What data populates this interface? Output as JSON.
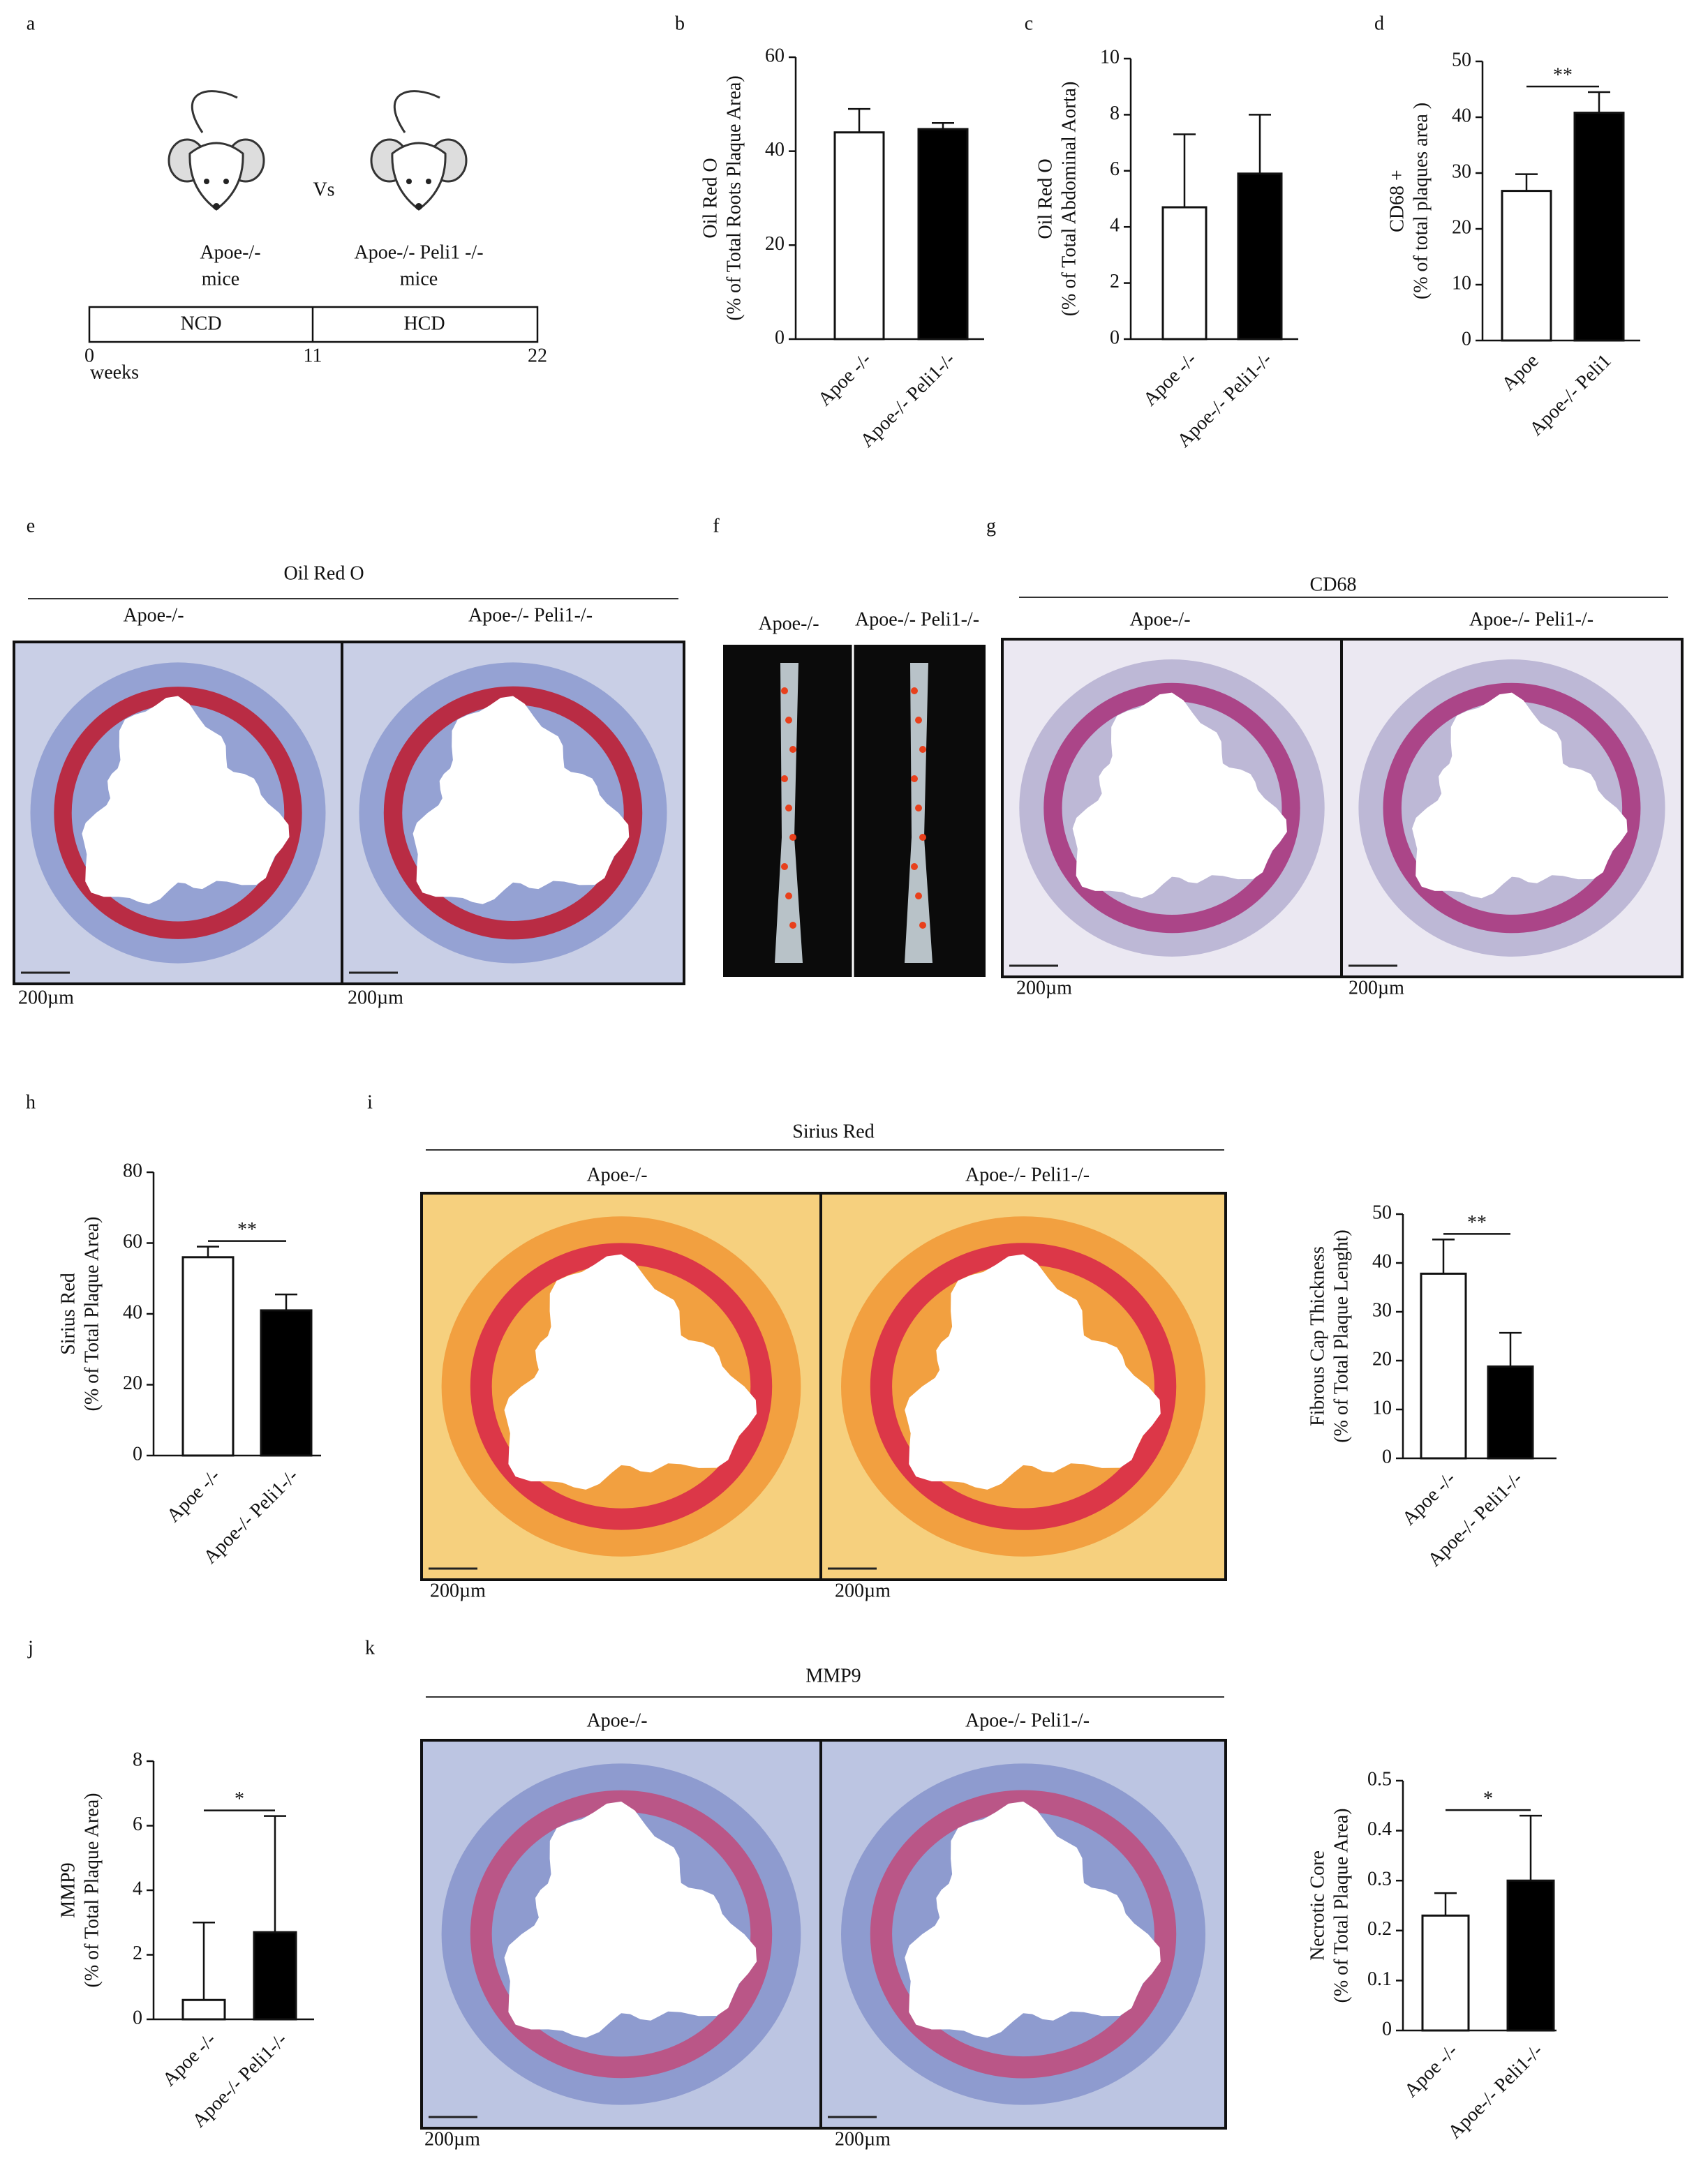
{
  "chart_data": [
    {
      "type": "bar",
      "ylabel": [
        "Oil Red O",
        "(% of Total Roots Plaque Area)"
      ],
      "categories": [
        "Apoe -/-",
        "Apoe-/- Peli1-/-"
      ],
      "values": [
        44,
        44.7
      ],
      "errors": [
        5,
        1.3
      ],
      "colors": [
        "#ffffff",
        "#000000"
      ],
      "ylim": [
        0,
        60
      ],
      "yticks": [
        0,
        20,
        40,
        60
      ]
    },
    {
      "type": "bar",
      "ylabel": [
        "Oil Red O",
        "(% of Total Abdominal Aorta)"
      ],
      "categories": [
        "Apoe -/-",
        "Apoe-/- Peli1-/-"
      ],
      "values": [
        4.7,
        5.9
      ],
      "errors": [
        2.6,
        2.1
      ],
      "colors": [
        "#ffffff",
        "#000000"
      ],
      "ylim": [
        0,
        10
      ],
      "yticks": [
        0,
        2,
        4,
        6,
        8,
        10
      ]
    },
    {
      "type": "bar",
      "ylabel": [
        "CD68 +",
        "(% of total plaques area )"
      ],
      "categories": [
        "Apoe",
        "Apoe-/- Peli1"
      ],
      "values": [
        26.8,
        40.8
      ],
      "errors": [
        3,
        3.7
      ],
      "colors": [
        "#ffffff",
        "#000000"
      ],
      "ylim": [
        0,
        50
      ],
      "yticks": [
        0,
        10,
        20,
        30,
        40,
        50
      ],
      "annotation": "**"
    },
    {
      "type": "bar",
      "ylabel": [
        "Sirius Red",
        "(% of Total Plaque Area)"
      ],
      "categories": [
        "Apoe -/-",
        "Apoe-/- Peli1-/-"
      ],
      "values": [
        56,
        41
      ],
      "errors": [
        3,
        4.5
      ],
      "colors": [
        "#ffffff",
        "#000000"
      ],
      "ylim": [
        0,
        80
      ],
      "yticks": [
        0,
        20,
        40,
        60,
        80
      ],
      "annotation": "**"
    },
    {
      "type": "bar",
      "ylabel": [
        "Fibrous Cap Thickness",
        "(% of Total Plaque Lenght)"
      ],
      "categories": [
        "Apoe -/-",
        "Apoe-/- Peli1-/-"
      ],
      "values": [
        37.8,
        18.8
      ],
      "errors": [
        7,
        6.9
      ],
      "colors": [
        "#ffffff",
        "#000000"
      ],
      "ylim": [
        0,
        50
      ],
      "yticks": [
        0,
        10,
        20,
        30,
        40,
        50
      ],
      "annotation": "**"
    },
    {
      "type": "bar",
      "ylabel": [
        "MMP9",
        "(% of Total Plaque Area)"
      ],
      "categories": [
        "Apoe -/-",
        "Apoe-/- Peli1-/-"
      ],
      "values": [
        0.6,
        2.7
      ],
      "errors": [
        2.4,
        3.6
      ],
      "colors": [
        "#ffffff",
        "#000000"
      ],
      "ylim": [
        0,
        8
      ],
      "yticks": [
        0,
        2,
        4,
        6,
        8
      ],
      "annotation": "*"
    },
    {
      "type": "bar",
      "ylabel": [
        "Necrotic Core",
        "(% of Total Plaque Area)"
      ],
      "categories": [
        "Apoe -/-",
        "Apoe-/- Peli1-/-"
      ],
      "values": [
        0.23,
        0.3
      ],
      "errors": [
        0.045,
        0.13
      ],
      "colors": [
        "#ffffff",
        "#000000"
      ],
      "ylim": [
        0,
        0.5
      ],
      "yticks": [
        0,
        0.1,
        0.2,
        0.3,
        0.4,
        0.5
      ],
      "annotation": "*"
    }
  ],
  "panel_letters": [
    "a",
    "b",
    "c",
    "d",
    "e",
    "f",
    "g",
    "h",
    "i",
    "j",
    "k"
  ],
  "diagram": {
    "mouse1": [
      "Apoe-/-",
      "mice"
    ],
    "vs": "Vs",
    "mouse2": [
      "Apoe-/- Peli1 -/-",
      "mice"
    ],
    "phases": [
      "NCD",
      "HCD"
    ],
    "timeline": [
      "0",
      "11",
      "22"
    ],
    "unit": "weeks"
  },
  "images": {
    "e": {
      "title": "Oil Red O",
      "columns": [
        "Apoe-/-",
        "Apoe-/- Peli1-/-"
      ],
      "scale": [
        "200µm",
        "200µm"
      ]
    },
    "f": {
      "columns": [
        "Apoe-/-",
        "Apoe-/- Peli1-/-"
      ]
    },
    "g": {
      "title": "CD68",
      "columns": [
        "Apoe-/-",
        "Apoe-/- Peli1-/-"
      ],
      "scale": [
        "200µm",
        "200µm"
      ]
    },
    "i": {
      "title": "Sirius Red",
      "columns": [
        "Apoe-/-",
        "Apoe-/- Peli1-/-"
      ],
      "scale": [
        "200µm",
        "200µm"
      ]
    },
    "k": {
      "title": "MMP9",
      "columns": [
        "Apoe-/-",
        "Apoe-/- Peli1-/-"
      ],
      "scale": [
        "200µm",
        "200µm"
      ]
    }
  }
}
